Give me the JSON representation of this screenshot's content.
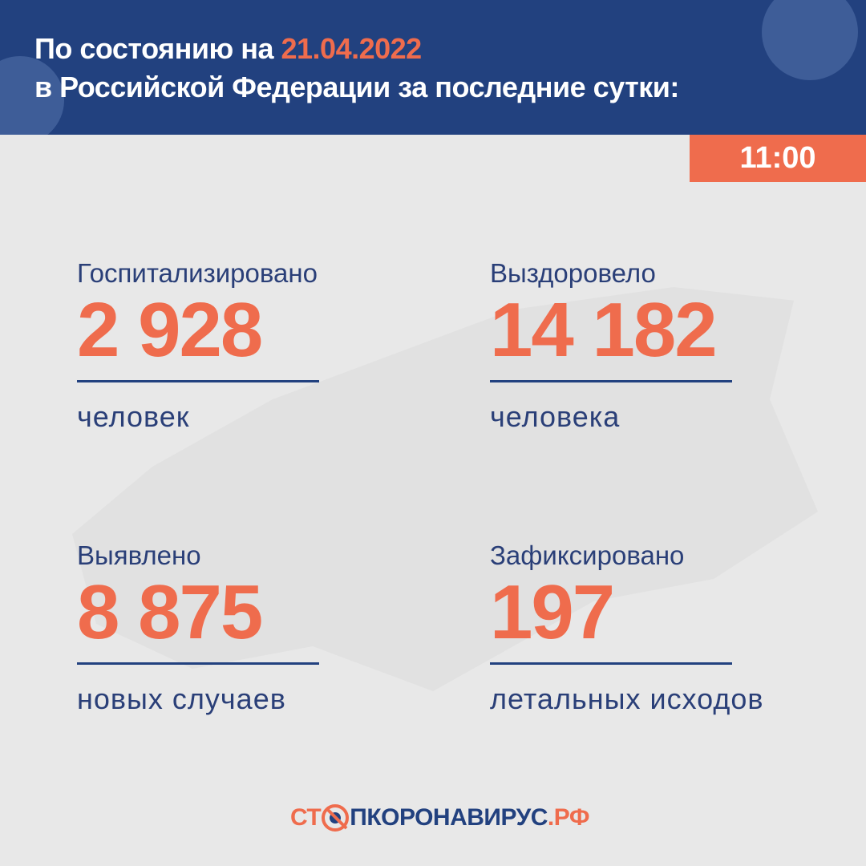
{
  "header": {
    "title_prefix": "По состоянию на ",
    "date": "21.04.2022",
    "title_line2": "в Российской Федерации за последние сутки:"
  },
  "time": "11:00",
  "stats": [
    {
      "label": "Госпитализировано",
      "value": "2 928",
      "unit": "человек"
    },
    {
      "label": "Выздоровело",
      "value": "14 182",
      "unit": "человека"
    },
    {
      "label": "Выявлено",
      "value": "8 875",
      "unit": "новых случаев"
    },
    {
      "label": "Зафиксировано",
      "value": "197",
      "unit": "летальных исходов"
    }
  ],
  "logo": {
    "part1": "СТ",
    "part2": "ПКОРОНАВИРУС",
    "part3": ".РФ"
  },
  "colors": {
    "blue": "#22417f",
    "orange": "#ef6c4d",
    "background": "#e8e8e8"
  }
}
